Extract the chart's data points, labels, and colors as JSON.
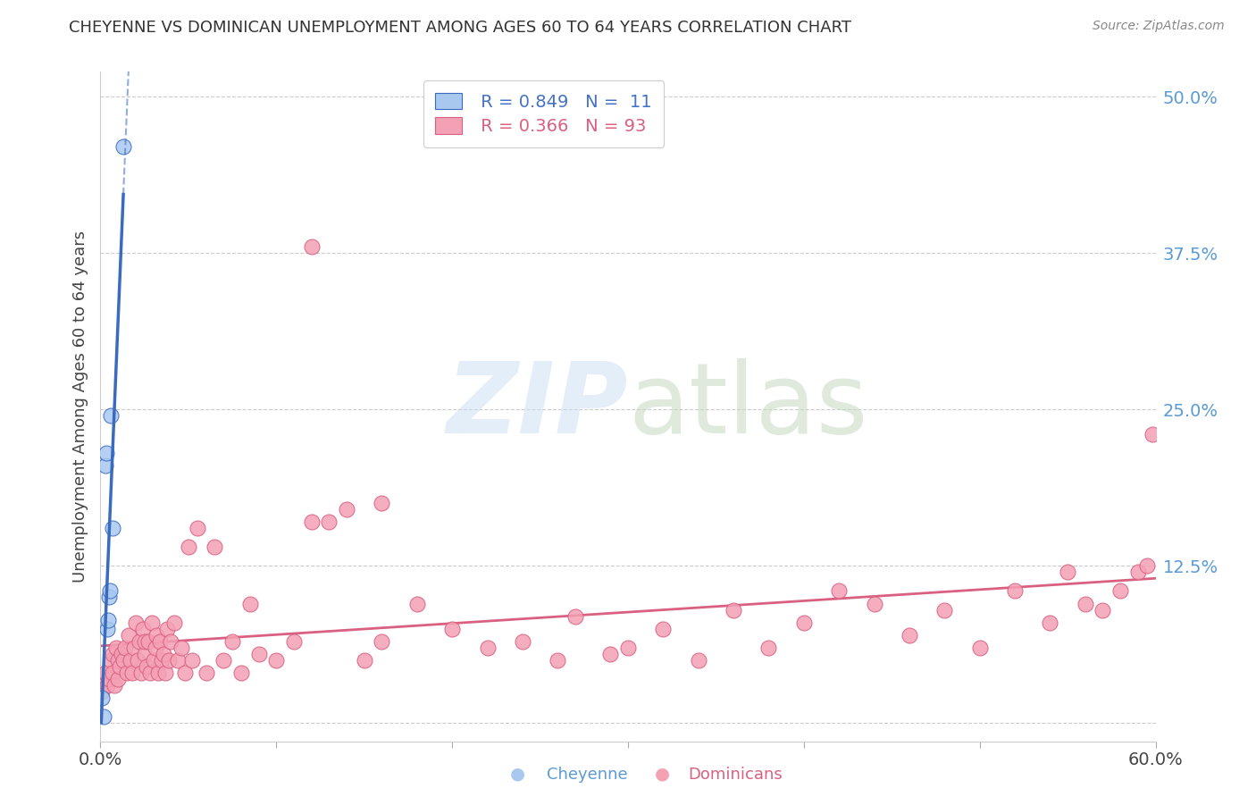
{
  "title": "CHEYENNE VS DOMINICAN UNEMPLOYMENT AMONG AGES 60 TO 64 YEARS CORRELATION CHART",
  "source": "Source: ZipAtlas.com",
  "ylabel": "Unemployment Among Ages 60 to 64 years",
  "xlim": [
    0.0,
    0.6
  ],
  "ylim": [
    -0.015,
    0.52
  ],
  "yticks": [
    0.0,
    0.125,
    0.25,
    0.375,
    0.5
  ],
  "ytick_labels": [
    "",
    "12.5%",
    "25.0%",
    "37.5%",
    "50.0%"
  ],
  "xtick_vals": [
    0.0,
    0.1,
    0.2,
    0.3,
    0.4,
    0.5,
    0.6
  ],
  "xtick_labels": [
    "0.0%",
    "",
    "",
    "",
    "",
    "",
    "60.0%"
  ],
  "cheyenne_R": 0.849,
  "cheyenne_N": 11,
  "dominican_R": 0.366,
  "dominican_N": 93,
  "cheyenne_color": "#a8c8f0",
  "cheyenne_line_color": "#3a6bbf",
  "dominican_color": "#f4a0b5",
  "dominican_line_color": "#d96080",
  "legend_color_blue": "#4472c4",
  "legend_color_pink": "#d96080",
  "cheyenne_x": [
    0.001,
    0.002,
    0.003,
    0.0035,
    0.004,
    0.0045,
    0.005,
    0.0055,
    0.006,
    0.007,
    0.013
  ],
  "cheyenne_y": [
    0.02,
    0.005,
    0.205,
    0.215,
    0.075,
    0.082,
    0.1,
    0.105,
    0.245,
    0.155,
    0.46
  ],
  "dominican_x": [
    0.001,
    0.002,
    0.003,
    0.004,
    0.005,
    0.006,
    0.007,
    0.007,
    0.008,
    0.009,
    0.01,
    0.01,
    0.011,
    0.012,
    0.013,
    0.014,
    0.015,
    0.016,
    0.017,
    0.018,
    0.019,
    0.02,
    0.021,
    0.022,
    0.023,
    0.024,
    0.025,
    0.025,
    0.026,
    0.027,
    0.028,
    0.029,
    0.03,
    0.031,
    0.032,
    0.033,
    0.034,
    0.035,
    0.036,
    0.037,
    0.038,
    0.039,
    0.04,
    0.042,
    0.044,
    0.046,
    0.048,
    0.05,
    0.052,
    0.055,
    0.06,
    0.065,
    0.07,
    0.075,
    0.08,
    0.085,
    0.09,
    0.1,
    0.11,
    0.12,
    0.13,
    0.15,
    0.16,
    0.18,
    0.2,
    0.22,
    0.24,
    0.26,
    0.27,
    0.29,
    0.3,
    0.32,
    0.34,
    0.36,
    0.38,
    0.4,
    0.42,
    0.44,
    0.46,
    0.48,
    0.5,
    0.52,
    0.54,
    0.55,
    0.56,
    0.57,
    0.58,
    0.59,
    0.595,
    0.598,
    0.12,
    0.14,
    0.16
  ],
  "dominican_y": [
    0.025,
    0.03,
    0.04,
    0.03,
    0.035,
    0.05,
    0.04,
    0.055,
    0.03,
    0.06,
    0.05,
    0.035,
    0.045,
    0.055,
    0.05,
    0.06,
    0.04,
    0.07,
    0.05,
    0.04,
    0.06,
    0.08,
    0.05,
    0.065,
    0.04,
    0.075,
    0.055,
    0.065,
    0.045,
    0.065,
    0.04,
    0.08,
    0.05,
    0.06,
    0.07,
    0.04,
    0.065,
    0.05,
    0.055,
    0.04,
    0.075,
    0.05,
    0.065,
    0.08,
    0.05,
    0.06,
    0.04,
    0.14,
    0.05,
    0.155,
    0.04,
    0.14,
    0.05,
    0.065,
    0.04,
    0.095,
    0.055,
    0.05,
    0.065,
    0.38,
    0.16,
    0.05,
    0.065,
    0.095,
    0.075,
    0.06,
    0.065,
    0.05,
    0.085,
    0.055,
    0.06,
    0.075,
    0.05,
    0.09,
    0.06,
    0.08,
    0.105,
    0.095,
    0.07,
    0.09,
    0.06,
    0.105,
    0.08,
    0.12,
    0.095,
    0.09,
    0.105,
    0.12,
    0.125,
    0.23,
    0.16,
    0.17,
    0.175
  ]
}
